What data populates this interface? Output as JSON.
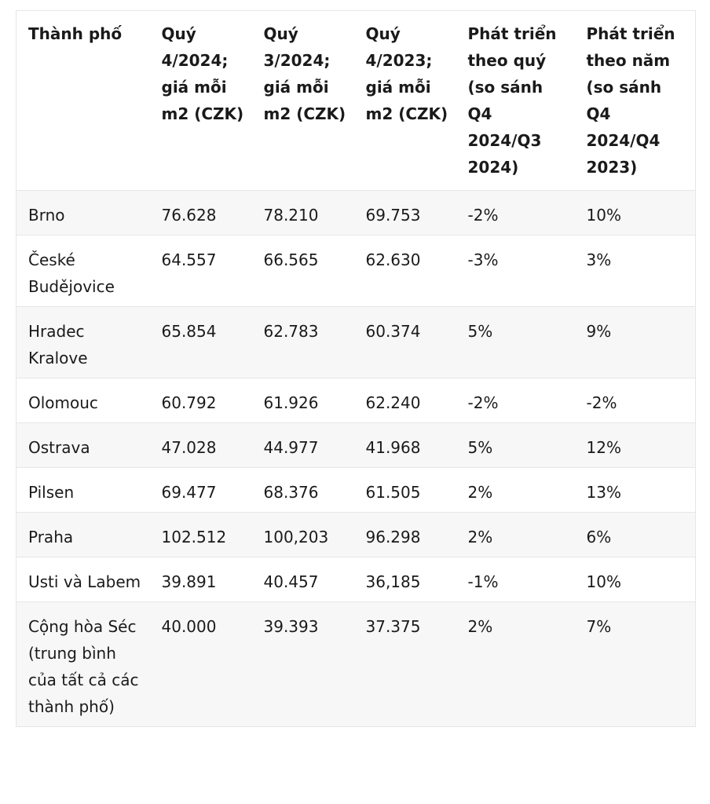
{
  "table": {
    "headers": [
      "Thành phố",
      "Quý 4/2024; giá mỗi m2 (CZK)",
      "Quý 3/2024; giá mỗi m2 (CZK)",
      "Quý 4/2023; giá mỗi m2 (CZK)",
      "Phát triển theo quý (so sánh Q4 2024/Q3 2024)",
      "Phát triển theo năm (so sánh Q4 2024/Q4 2023)"
    ],
    "rows": [
      [
        "Brno",
        "76.628",
        "78.210",
        "69.753",
        "-2%",
        "10%"
      ],
      [
        "České Budějovice",
        "64.557",
        "66.565",
        "62.630",
        "-3%",
        "3%"
      ],
      [
        "Hradec Kralove",
        "65.854",
        "62.783",
        "60.374",
        "5%",
        "9%"
      ],
      [
        "Olomouc",
        "60.792",
        "61.926",
        "62.240",
        "-2%",
        "-2%"
      ],
      [
        "Ostrava",
        "47.028",
        "44.977",
        "41.968",
        "5%",
        "12%"
      ],
      [
        "Pilsen",
        "69.477",
        "68.376",
        "61.505",
        "2%",
        "13%"
      ],
      [
        "Praha",
        "102.512",
        "100,203",
        "96.298",
        "2%",
        "6%"
      ],
      [
        "Usti và Labem",
        "39.891",
        "40.457",
        "36,185",
        "-1%",
        "10%"
      ],
      [
        "Cộng hòa Séc (trung bình của tất cả các thành phố)",
        "40.000",
        "39.393",
        "37.375",
        "2%",
        "7%"
      ]
    ]
  }
}
